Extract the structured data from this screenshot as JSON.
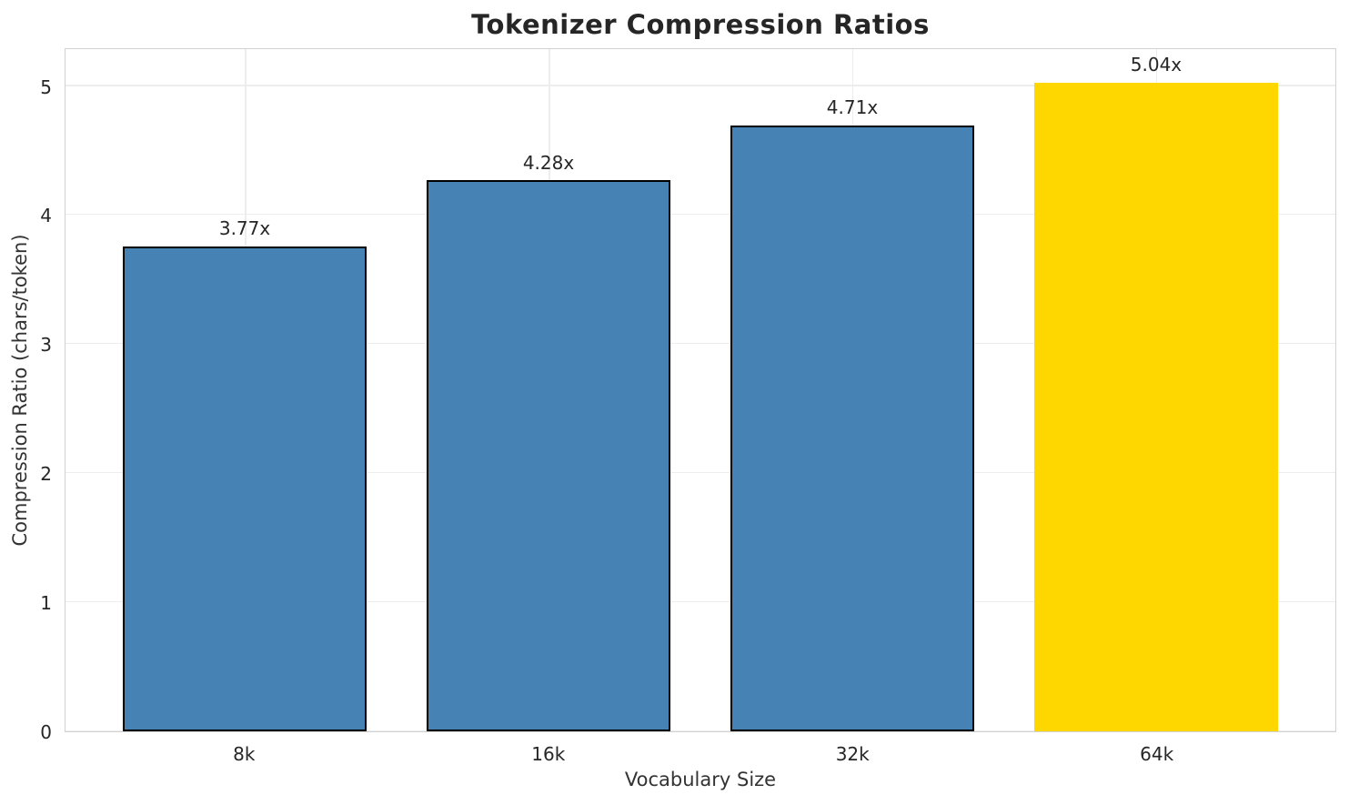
{
  "chart_data": {
    "type": "bar",
    "title": "Tokenizer Compression Ratios",
    "xlabel": "Vocabulary Size",
    "ylabel": "Compression Ratio (chars/token)",
    "categories": [
      "8k",
      "16k",
      "32k",
      "64k"
    ],
    "values": [
      3.77,
      4.28,
      4.71,
      5.04
    ],
    "bar_labels": [
      "3.77x",
      "4.28x",
      "4.71x",
      "5.04x"
    ],
    "bar_colors": [
      "#4682b4",
      "#4682b4",
      "#4682b4",
      "#ffd700"
    ],
    "bar_edge_colors": [
      "#000000",
      "#000000",
      "#000000",
      "#ffd700"
    ],
    "highlight_index": 3,
    "bar_width": 0.8,
    "xlim": [
      -0.59,
      3.59
    ],
    "ylim": [
      0,
      5.3
    ],
    "yticks": [
      0,
      1,
      2,
      3,
      4,
      5
    ],
    "grid": "both",
    "grid_color": "#ededed",
    "spine_color": "#d2d2d2",
    "text_color": "#262626",
    "legend": "none"
  }
}
